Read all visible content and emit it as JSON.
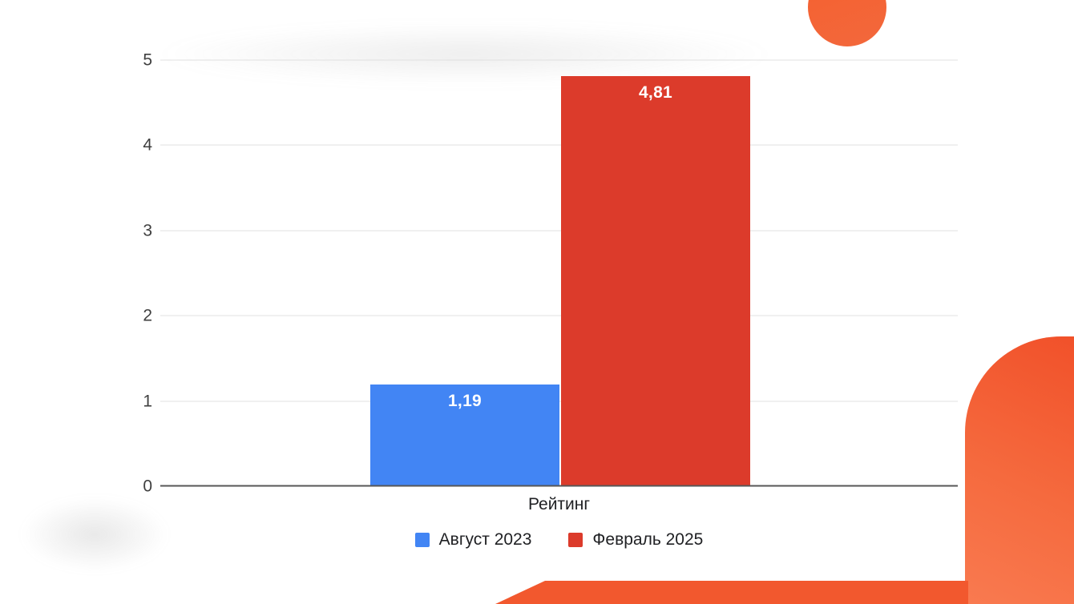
{
  "chart_data": {
    "type": "bar",
    "title": "",
    "categories": [
      "Рейтинг"
    ],
    "series": [
      {
        "name": "Август 2023",
        "values": [
          1.19
        ],
        "display_values": [
          "1,19"
        ],
        "color": "#4285f4"
      },
      {
        "name": "Февраль 2025",
        "values": [
          4.81
        ],
        "display_values": [
          "4,81"
        ],
        "color": "#dc3b2b"
      }
    ],
    "xlabel": "Рейтинг",
    "ylabel": "",
    "ylim": [
      0,
      5
    ],
    "yticks": [
      0,
      1,
      2,
      3,
      4,
      5
    ],
    "grid": true,
    "legend_position": "bottom"
  },
  "decor": {
    "accent_color": "#f2582e"
  }
}
